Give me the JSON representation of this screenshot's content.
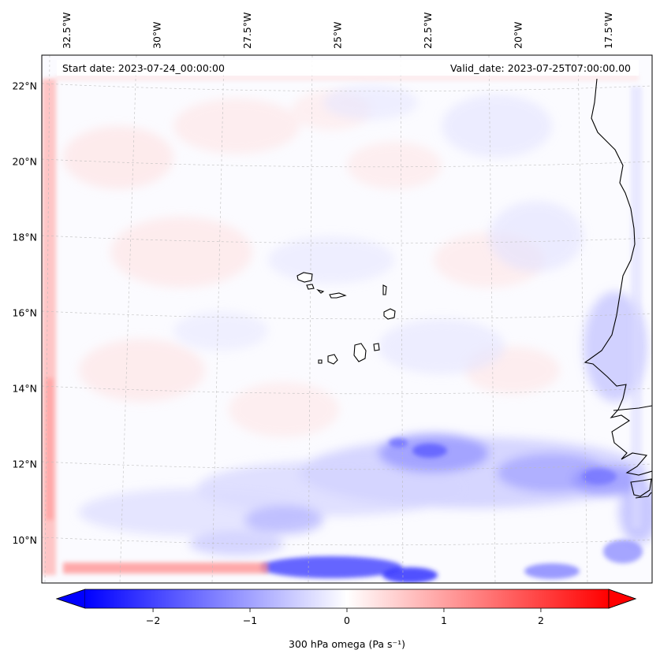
{
  "map": {
    "start_label": "Start date: 2023-07-24_00:00:00",
    "valid_label": "Valid_date: 2023-07-25T07:00:00.00",
    "lon_range": [
      -33.2,
      -16.3
    ],
    "lat_range": [
      8.85,
      22.8
    ],
    "lon_ticks": [
      {
        "value": -32.5,
        "label": "32.5°W"
      },
      {
        "value": -30.0,
        "label": "30°W"
      },
      {
        "value": -27.5,
        "label": "27.5°W"
      },
      {
        "value": -25.0,
        "label": "25°W"
      },
      {
        "value": -22.5,
        "label": "22.5°W"
      },
      {
        "value": -20.0,
        "label": "20°W"
      },
      {
        "value": -17.5,
        "label": "17.5°W"
      }
    ],
    "lat_ticks": [
      {
        "value": 10,
        "label": "10°N"
      },
      {
        "value": 12,
        "label": "12°N"
      },
      {
        "value": 14,
        "label": "14°N"
      },
      {
        "value": 16,
        "label": "16°N"
      },
      {
        "value": 18,
        "label": "18°N"
      },
      {
        "value": 20,
        "label": "20°N"
      },
      {
        "value": 22,
        "label": "22°N"
      }
    ]
  },
  "colorbar": {
    "label": "300 hPa omega (Pa s⁻¹)",
    "vmin": -2.7,
    "vmax": 2.7,
    "colormap": "bwr",
    "low_color": "#0000ff",
    "mid_color": "#ffffff",
    "high_color": "#ff0000",
    "ticks": [
      {
        "value": -2,
        "label": "−2"
      },
      {
        "value": -1,
        "label": "−1"
      },
      {
        "value": 0,
        "label": "0"
      },
      {
        "value": 1,
        "label": "1"
      },
      {
        "value": 2,
        "label": "2"
      }
    ]
  }
}
